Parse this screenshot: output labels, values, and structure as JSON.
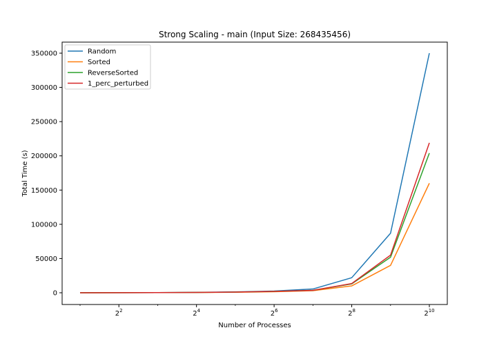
{
  "chart_data": {
    "type": "line",
    "title": "Strong Scaling - main (Input Size: 268435456)",
    "xlabel": "Number of Processes",
    "ylabel": "Total Time (s)",
    "x_scale": "log2",
    "x": [
      2,
      4,
      8,
      16,
      32,
      64,
      128,
      256,
      512,
      1024
    ],
    "xlim": [
      2,
      1024
    ],
    "ylim": [
      0,
      350000
    ],
    "x_ticks": [
      {
        "value": 4,
        "base": "2",
        "exp": "2"
      },
      {
        "value": 16,
        "base": "2",
        "exp": "4"
      },
      {
        "value": 64,
        "base": "2",
        "exp": "6"
      },
      {
        "value": 256,
        "base": "2",
        "exp": "8"
      },
      {
        "value": 1024,
        "base": "2",
        "exp": "10"
      }
    ],
    "y_ticks": [
      {
        "value": 0,
        "label": "0"
      },
      {
        "value": 50000,
        "label": "50000"
      },
      {
        "value": 100000,
        "label": "100000"
      },
      {
        "value": 150000,
        "label": "150000"
      },
      {
        "value": 200000,
        "label": "200000"
      },
      {
        "value": 250000,
        "label": "250000"
      },
      {
        "value": 300000,
        "label": "300000"
      },
      {
        "value": 350000,
        "label": "350000"
      }
    ],
    "grid": false,
    "legend": "top-left",
    "series": [
      {
        "name": "Random",
        "color": "#1f77b4",
        "values": [
          50,
          130,
          300,
          600,
          1200,
          2500,
          5500,
          22000,
          87000,
          350000
        ]
      },
      {
        "name": "Sorted",
        "color": "#ff7f0e",
        "values": [
          30,
          80,
          200,
          400,
          800,
          1500,
          3000,
          10000,
          40000,
          160000
        ]
      },
      {
        "name": "ReverseSorted",
        "color": "#2ca02c",
        "values": [
          40,
          100,
          250,
          500,
          1000,
          2000,
          3500,
          13000,
          52000,
          204000
        ]
      },
      {
        "name": "1_perc_perturbed",
        "color": "#d62728",
        "values": [
          40,
          100,
          250,
          500,
          1000,
          2000,
          3500,
          13500,
          55000,
          219000
        ]
      }
    ]
  }
}
